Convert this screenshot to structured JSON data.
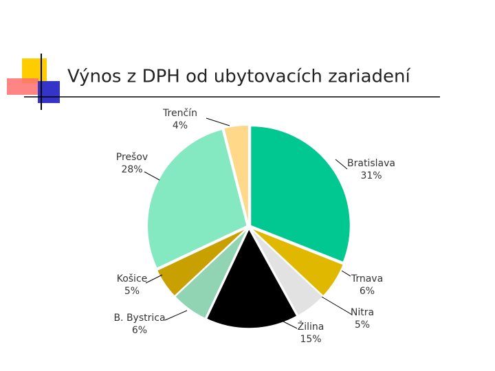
{
  "chart_data": {
    "type": "pie",
    "title": "Výnos z DPH od ubytovacích zariadení",
    "categories": [
      "Bratislava",
      "Trnava",
      "Nitra",
      "Žilina",
      "B. Bystrica",
      "Košice",
      "Prešov",
      "Trenčín"
    ],
    "values": [
      31,
      6,
      5,
      15,
      6,
      5,
      28,
      4
    ],
    "value_labels": [
      "31%",
      "6%",
      "5%",
      "15%",
      "6%",
      "5%",
      "28%",
      "4%"
    ],
    "colors": [
      "#00c890",
      "#e0b800",
      "#e2e2e2",
      "#000000",
      "#90d4b4",
      "#c8a000",
      "#84e8c0",
      "#ffd88a"
    ]
  }
}
